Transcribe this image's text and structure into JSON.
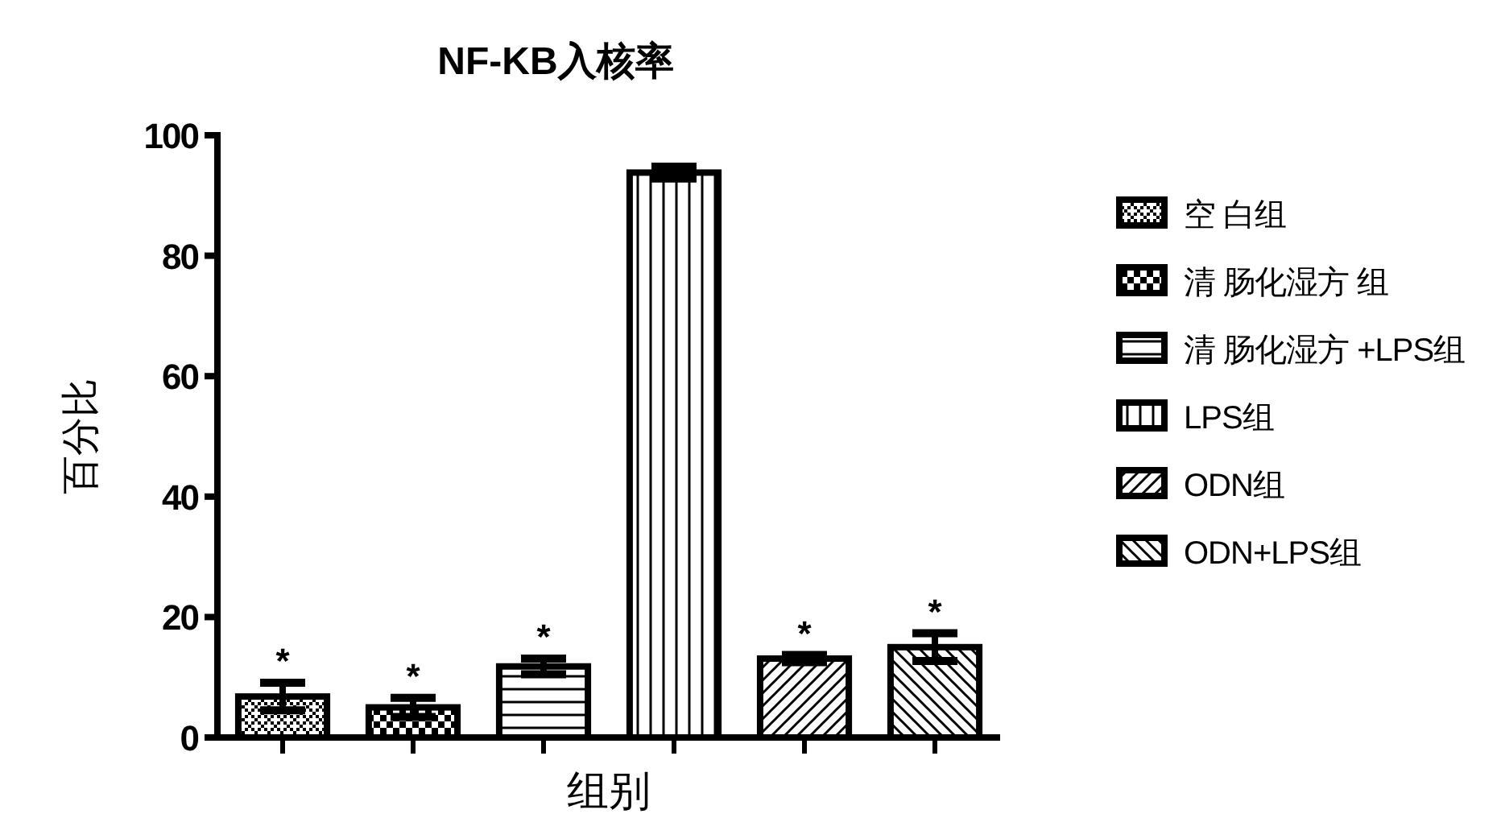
{
  "chart_data": {
    "type": "bar",
    "title": "NF-KB入核率",
    "xlabel": "组别",
    "ylabel": "百分比",
    "categories": [
      null,
      null,
      null,
      null,
      null,
      null
    ],
    "series": [
      {
        "name": "空 白组",
        "color": "#000000",
        "values": [
          6.8,
          null,
          null,
          null,
          null,
          null
        ],
        "errors": [
          2.3,
          null,
          null,
          null,
          null,
          null
        ],
        "value_labels": [
          "*",
          null,
          null,
          null,
          null,
          null
        ]
      },
      {
        "name": "清 肠化湿方 组",
        "color": "#000000",
        "values": [
          null,
          5.0,
          null,
          null,
          null,
          null
        ],
        "errors": [
          null,
          1.6,
          null,
          null,
          null,
          null
        ],
        "value_labels": [
          null,
          "*",
          null,
          null,
          null,
          null
        ]
      },
      {
        "name": "清 肠化湿方 +LPS组",
        "color": "#000000",
        "values": [
          null,
          null,
          11.8,
          null,
          null,
          null
        ],
        "errors": [
          null,
          null,
          1.3,
          null,
          null,
          null
        ],
        "value_labels": [
          null,
          null,
          "*",
          null,
          null,
          null
        ]
      },
      {
        "name": "LPS组",
        "color": "#000000",
        "values": [
          null,
          null,
          null,
          93.8,
          null,
          null
        ],
        "errors": [
          null,
          null,
          null,
          1.0,
          null,
          null
        ]
      },
      {
        "name": "ODN组",
        "color": "#000000",
        "values": [
          null,
          null,
          null,
          null,
          13.1,
          null
        ],
        "errors": [
          null,
          null,
          null,
          null,
          0.6,
          null
        ],
        "value_labels": [
          null,
          null,
          null,
          null,
          "*",
          null
        ]
      },
      {
        "name": "ODN+LPS组",
        "color": "#000000",
        "values": [
          null,
          null,
          null,
          null,
          null,
          15.0
        ],
        "errors": [
          null,
          null,
          null,
          null,
          null,
          2.3
        ],
        "value_labels": [
          null,
          null,
          null,
          null,
          null,
          "*"
        ]
      }
    ],
    "ylim": [
      0,
      100
    ],
    "yticks": [
      0,
      20,
      40,
      60,
      80,
      100
    ],
    "grid": false,
    "legend": "right"
  }
}
